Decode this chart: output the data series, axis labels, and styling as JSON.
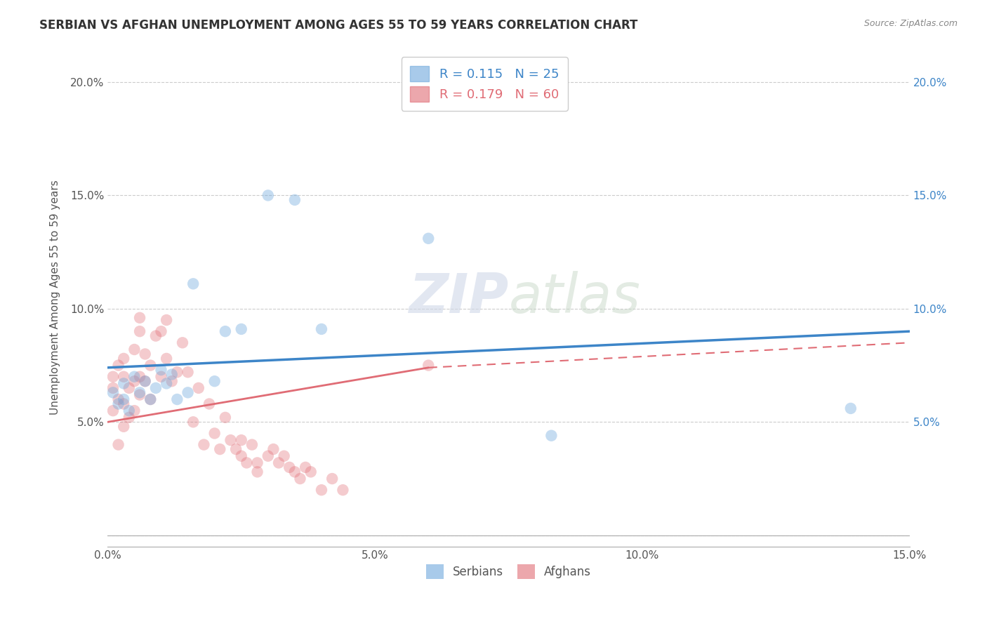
{
  "title": "SERBIAN VS AFGHAN UNEMPLOYMENT AMONG AGES 55 TO 59 YEARS CORRELATION CHART",
  "source": "Source: ZipAtlas.com",
  "ylabel": "Unemployment Among Ages 55 to 59 years",
  "xlim": [
    0,
    0.15
  ],
  "ylim": [
    -0.005,
    0.215
  ],
  "xticks": [
    0.0,
    0.05,
    0.1,
    0.15
  ],
  "xtick_labels": [
    "0.0%",
    "5.0%",
    "10.0%",
    "15.0%"
  ],
  "yticks": [
    0.0,
    0.05,
    0.1,
    0.15,
    0.2
  ],
  "ytick_labels": [
    "",
    "5.0%",
    "10.0%",
    "15.0%",
    "20.0%"
  ],
  "legend_entries_label": [
    "R = 0.115   N = 25",
    "R = 0.179   N = 60"
  ],
  "legend_bottom": [
    "Serbians",
    "Afghans"
  ],
  "serbian_color": "#6fa8dc",
  "afghan_color": "#e06c75",
  "serbian_line_color": "#3d85c8",
  "afghan_line_color": "#e06c75",
  "watermark": "ZIPatlas",
  "serbians_x": [
    0.001,
    0.002,
    0.003,
    0.003,
    0.004,
    0.005,
    0.006,
    0.007,
    0.008,
    0.009,
    0.01,
    0.011,
    0.012,
    0.013,
    0.015,
    0.016,
    0.02,
    0.022,
    0.025,
    0.03,
    0.035,
    0.04,
    0.06,
    0.083,
    0.139
  ],
  "serbians_y": [
    0.063,
    0.058,
    0.06,
    0.067,
    0.055,
    0.07,
    0.063,
    0.068,
    0.06,
    0.065,
    0.073,
    0.067,
    0.071,
    0.06,
    0.063,
    0.111,
    0.068,
    0.09,
    0.091,
    0.15,
    0.148,
    0.091,
    0.131,
    0.044,
    0.056
  ],
  "afghans_x": [
    0.001,
    0.001,
    0.001,
    0.002,
    0.002,
    0.002,
    0.003,
    0.003,
    0.003,
    0.003,
    0.004,
    0.004,
    0.005,
    0.005,
    0.005,
    0.006,
    0.006,
    0.006,
    0.006,
    0.007,
    0.007,
    0.008,
    0.008,
    0.009,
    0.01,
    0.01,
    0.011,
    0.011,
    0.012,
    0.013,
    0.014,
    0.015,
    0.016,
    0.017,
    0.018,
    0.019,
    0.02,
    0.021,
    0.022,
    0.023,
    0.024,
    0.025,
    0.025,
    0.026,
    0.027,
    0.028,
    0.028,
    0.03,
    0.031,
    0.032,
    0.033,
    0.034,
    0.035,
    0.036,
    0.037,
    0.038,
    0.04,
    0.042,
    0.044,
    0.06
  ],
  "afghans_y": [
    0.065,
    0.055,
    0.07,
    0.04,
    0.06,
    0.075,
    0.048,
    0.058,
    0.07,
    0.078,
    0.052,
    0.065,
    0.055,
    0.068,
    0.082,
    0.062,
    0.09,
    0.07,
    0.096,
    0.08,
    0.068,
    0.06,
    0.075,
    0.088,
    0.07,
    0.09,
    0.078,
    0.095,
    0.068,
    0.072,
    0.085,
    0.072,
    0.05,
    0.065,
    0.04,
    0.058,
    0.045,
    0.038,
    0.052,
    0.042,
    0.038,
    0.042,
    0.035,
    0.032,
    0.04,
    0.032,
    0.028,
    0.035,
    0.038,
    0.032,
    0.035,
    0.03,
    0.028,
    0.025,
    0.03,
    0.028,
    0.02,
    0.025,
    0.02,
    0.075
  ]
}
